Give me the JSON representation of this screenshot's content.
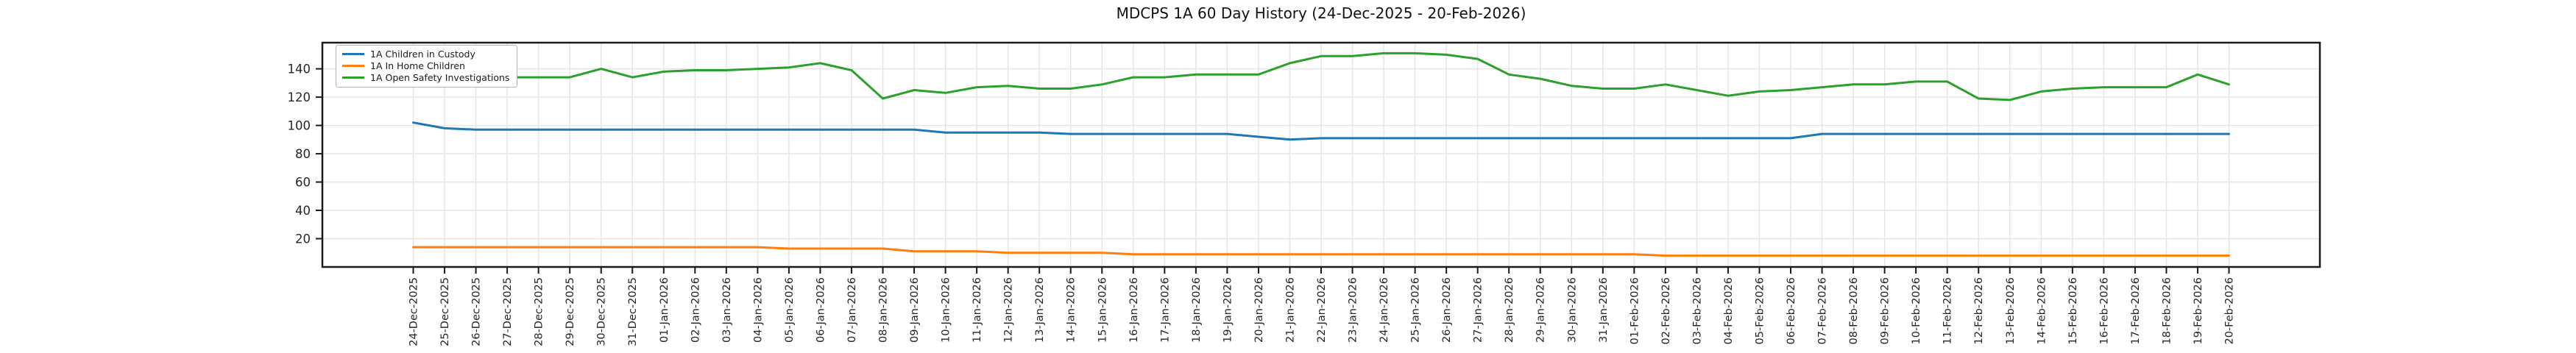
{
  "chart_data": {
    "type": "line",
    "title": "MDCPS 1A 60 Day History (24-Dec-2025 - 20-Feb-2026)",
    "xlabel": "",
    "ylabel": "",
    "grid": true,
    "legend_position": "upper-left",
    "ylim": [
      0,
      158.5
    ],
    "yticks": [
      20,
      40,
      60,
      80,
      100,
      120,
      140
    ],
    "x_tick_labels": [
      "24-Dec-2025",
      "25-Dec-2025",
      "26-Dec-2025",
      "27-Dec-2025",
      "28-Dec-2025",
      "29-Dec-2025",
      "30-Dec-2025",
      "31-Dec-2025",
      "01-Jan-2026",
      "02-Jan-2026",
      "03-Jan-2026",
      "04-Jan-2026",
      "05-Jan-2026",
      "06-Jan-2026",
      "07-Jan-2026",
      "08-Jan-2026",
      "09-Jan-2026",
      "10-Jan-2026",
      "11-Jan-2026",
      "12-Jan-2026",
      "13-Jan-2026",
      "14-Jan-2026",
      "15-Jan-2026",
      "16-Jan-2026",
      "17-Jan-2026",
      "18-Jan-2026",
      "19-Jan-2026",
      "20-Jan-2026",
      "21-Jan-2026",
      "22-Jan-2026",
      "23-Jan-2026",
      "24-Jan-2026",
      "25-Jan-2026",
      "26-Jan-2026",
      "27-Jan-2026",
      "28-Jan-2026",
      "29-Jan-2026",
      "30-Jan-2026",
      "31-Jan-2026",
      "01-Feb-2026",
      "02-Feb-2026",
      "03-Feb-2026",
      "04-Feb-2026",
      "05-Feb-2026",
      "06-Feb-2026",
      "07-Feb-2026",
      "08-Feb-2026",
      "09-Feb-2026",
      "10-Feb-2026",
      "11-Feb-2026",
      "12-Feb-2026",
      "13-Feb-2026",
      "14-Feb-2026",
      "15-Feb-2026",
      "16-Feb-2026",
      "17-Feb-2026",
      "18-Feb-2026",
      "19-Feb-2026",
      "20-Feb-2026"
    ],
    "series": [
      {
        "name": "1A Children in Custody",
        "color": "#1f77b4",
        "values": [
          102,
          98,
          97,
          97,
          97,
          97,
          97,
          97,
          97,
          97,
          97,
          97,
          97,
          97,
          97,
          97,
          97,
          95,
          95,
          95,
          95,
          94,
          94,
          94,
          94,
          94,
          94,
          92,
          90,
          91,
          91,
          91,
          91,
          91,
          91,
          91,
          91,
          91,
          91,
          91,
          91,
          91,
          91,
          91,
          91,
          94,
          94,
          94,
          94,
          94,
          94,
          94,
          94,
          94,
          94,
          94,
          94,
          94,
          94
        ]
      },
      {
        "name": "1A In Home Children",
        "color": "#ff7f0e",
        "values": [
          14,
          14,
          14,
          14,
          14,
          14,
          14,
          14,
          14,
          14,
          14,
          14,
          13,
          13,
          13,
          13,
          11,
          11,
          11,
          10,
          10,
          10,
          10,
          9,
          9,
          9,
          9,
          9,
          9,
          9,
          9,
          9,
          9,
          9,
          9,
          9,
          9,
          9,
          9,
          9,
          8,
          8,
          8,
          8,
          8,
          8,
          8,
          8,
          8,
          8,
          8,
          8,
          8,
          8,
          8,
          8,
          8,
          8,
          8
        ]
      },
      {
        "name": "1A Open Safety Investigations",
        "color": "#2ca02c",
        "values": [
          133,
          130,
          130,
          134,
          134,
          134,
          140,
          134,
          138,
          139,
          139,
          140,
          141,
          144,
          139,
          119,
          125,
          123,
          127,
          128,
          126,
          126,
          129,
          134,
          134,
          136,
          136,
          136,
          144,
          149,
          149,
          151,
          151,
          150,
          147,
          136,
          133,
          128,
          126,
          126,
          129,
          125,
          121,
          124,
          125,
          127,
          129,
          129,
          131,
          131,
          119,
          118,
          124,
          126,
          127,
          127,
          127,
          136,
          129
        ]
      }
    ],
    "axis_color": "#1a1a1a",
    "grid_color": "#e6e6e6",
    "tick_label_color": "#262626"
  }
}
